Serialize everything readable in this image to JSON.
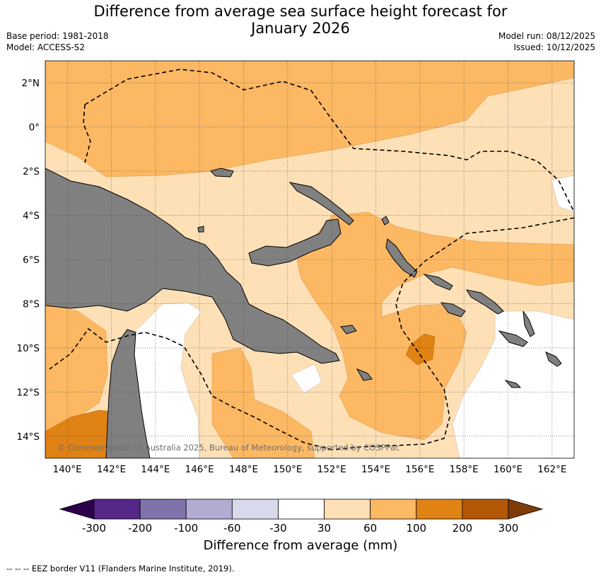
{
  "title": {
    "line1": "Difference from average sea surface height forecast for",
    "line2": "January 2026"
  },
  "meta": {
    "base_period": "Base period: 1981-2018",
    "model": "Model: ACCESS-S2",
    "model_run": "Model run: 08/12/2025",
    "issued": "Issued: 10/12/2025"
  },
  "map": {
    "lon_range": [
      139,
      163
    ],
    "lat_range": [
      -15,
      3
    ],
    "lon_ticks": [
      "140°E",
      "142°E",
      "144°E",
      "146°E",
      "148°E",
      "150°E",
      "152°E",
      "154°E",
      "156°E",
      "158°E",
      "160°E",
      "162°E"
    ],
    "lat_ticks": [
      "2°N",
      "0°",
      "2°S",
      "4°S",
      "6°S",
      "8°S",
      "10°S",
      "12°S",
      "14°S"
    ],
    "grid": true,
    "land_color": "#808080",
    "copyright": "© Commonwealth of Australia 2025, Bureau of Meteorology, supported by COSPPac"
  },
  "colorbar": {
    "title": "Difference from average (mm)",
    "tick_labels": [
      "-300",
      "-200",
      "-100",
      "-60",
      "-30",
      "30",
      "60",
      "100",
      "200",
      "300"
    ],
    "colors": [
      "#2d004b",
      "#542788",
      "#8073ac",
      "#b2abd2",
      "#d8daeb",
      "#ffffff",
      "#fee0b6",
      "#fdb863",
      "#e08214",
      "#b35806",
      "#7f3b08"
    ]
  },
  "legend": {
    "footnote": "-- -- -- EEZ border V11 (Flanders Marine Institute, 2019)."
  }
}
